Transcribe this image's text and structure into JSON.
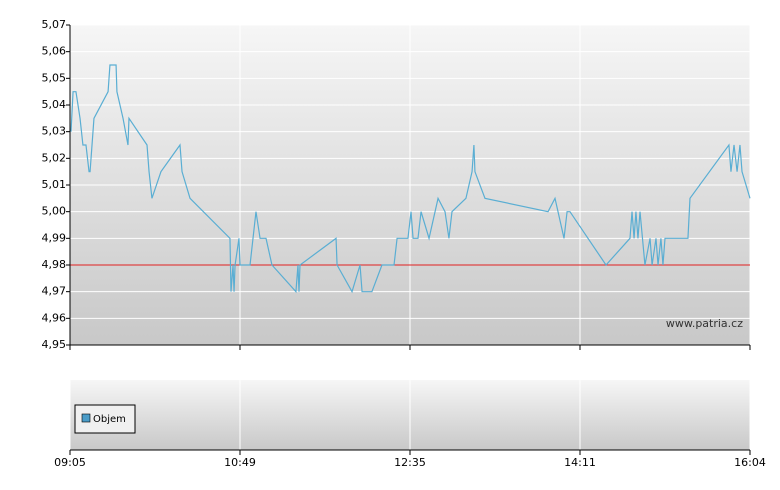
{
  "chart_data": [
    {
      "type": "line",
      "xlim": [
        0,
        4
      ],
      "ylim": [
        4.95,
        5.07
      ],
      "yticks": [
        {
          "value": 4.95,
          "label": "4,95"
        },
        {
          "value": 4.96,
          "label": "4,96"
        },
        {
          "value": 4.97,
          "label": "4,97"
        },
        {
          "value": 4.98,
          "label": "4,98"
        },
        {
          "value": 4.99,
          "label": "4,99"
        },
        {
          "value": 5.0,
          "label": "5,00"
        },
        {
          "value": 5.01,
          "label": "5,01"
        },
        {
          "value": 5.02,
          "label": "5,02"
        },
        {
          "value": 5.03,
          "label": "5,03"
        },
        {
          "value": 5.04,
          "label": "5,04"
        },
        {
          "value": 5.05,
          "label": "5,05"
        },
        {
          "value": 5.06,
          "label": "5,06"
        },
        {
          "value": 5.07,
          "label": "5,07"
        }
      ],
      "grid": true,
      "reference_line": {
        "value": 4.98,
        "color": "#e02020"
      },
      "watermark": "www.patria.cz",
      "color": "#5aaed3",
      "x": [
        0.006,
        0.018,
        0.035,
        0.059,
        0.076,
        0.094,
        0.112,
        0.118,
        0.141,
        0.224,
        0.235,
        0.271,
        0.276,
        0.312,
        0.341,
        0.347,
        0.453,
        0.465,
        0.482,
        0.535,
        0.647,
        0.659,
        0.706,
        0.941,
        0.947,
        0.959,
        0.965,
        0.971,
        0.994,
        1.0,
        1.059,
        1.094,
        1.118,
        1.153,
        1.188,
        1.329,
        1.341,
        1.347,
        1.353,
        1.565,
        1.571,
        1.659,
        1.706,
        1.718,
        1.776,
        1.835,
        1.906,
        1.924,
        1.988,
        2.006,
        2.018,
        2.047,
        2.065,
        2.112,
        2.165,
        2.206,
        2.229,
        2.247,
        2.329,
        2.365,
        2.376,
        2.382,
        2.441,
        2.812,
        2.853,
        2.906,
        2.924,
        2.941,
        3.153,
        3.294,
        3.306,
        3.318,
        3.329,
        3.341,
        3.353,
        3.382,
        3.412,
        3.424,
        3.447,
        3.459,
        3.476,
        3.488,
        3.5,
        3.635,
        3.647,
        3.876,
        3.888,
        3.906,
        3.924,
        3.941,
        3.953,
        4.0
      ],
      "values": [
        5.03,
        5.045,
        5.045,
        5.035,
        5.025,
        5.025,
        5.015,
        5.015,
        5.035,
        5.045,
        5.055,
        5.055,
        5.045,
        5.035,
        5.025,
        5.035,
        5.025,
        5.015,
        5.005,
        5.015,
        5.025,
        5.015,
        5.005,
        4.99,
        4.97,
        4.98,
        4.97,
        4.98,
        4.99,
        4.98,
        4.98,
        5.0,
        4.99,
        4.99,
        4.98,
        4.97,
        4.98,
        4.97,
        4.98,
        4.99,
        4.98,
        4.97,
        4.98,
        4.97,
        4.97,
        4.98,
        4.98,
        4.99,
        4.99,
        5.0,
        4.99,
        4.99,
        5.0,
        4.99,
        5.005,
        5.0,
        4.99,
        5.0,
        5.005,
        5.015,
        5.025,
        5.015,
        5.005,
        5.0,
        5.005,
        4.99,
        5.0,
        5.0,
        4.98,
        4.99,
        5.0,
        4.99,
        5.0,
        4.99,
        5.0,
        4.98,
        4.99,
        4.98,
        4.99,
        4.98,
        4.99,
        4.98,
        4.99,
        4.99,
        5.005,
        5.025,
        5.015,
        5.025,
        5.015,
        5.025,
        5.015,
        5.005
      ]
    },
    {
      "type": "bar",
      "xlim": [
        0,
        4
      ],
      "xticks": [
        {
          "value": 0,
          "label": "09:05"
        },
        {
          "value": 1,
          "label": "10:49"
        },
        {
          "value": 2,
          "label": "12:35"
        },
        {
          "value": 3,
          "label": "14:11"
        },
        {
          "value": 4,
          "label": "16:04"
        }
      ],
      "series": [
        {
          "name": "Objem",
          "color": "#4a9cc8",
          "values": []
        }
      ]
    }
  ]
}
